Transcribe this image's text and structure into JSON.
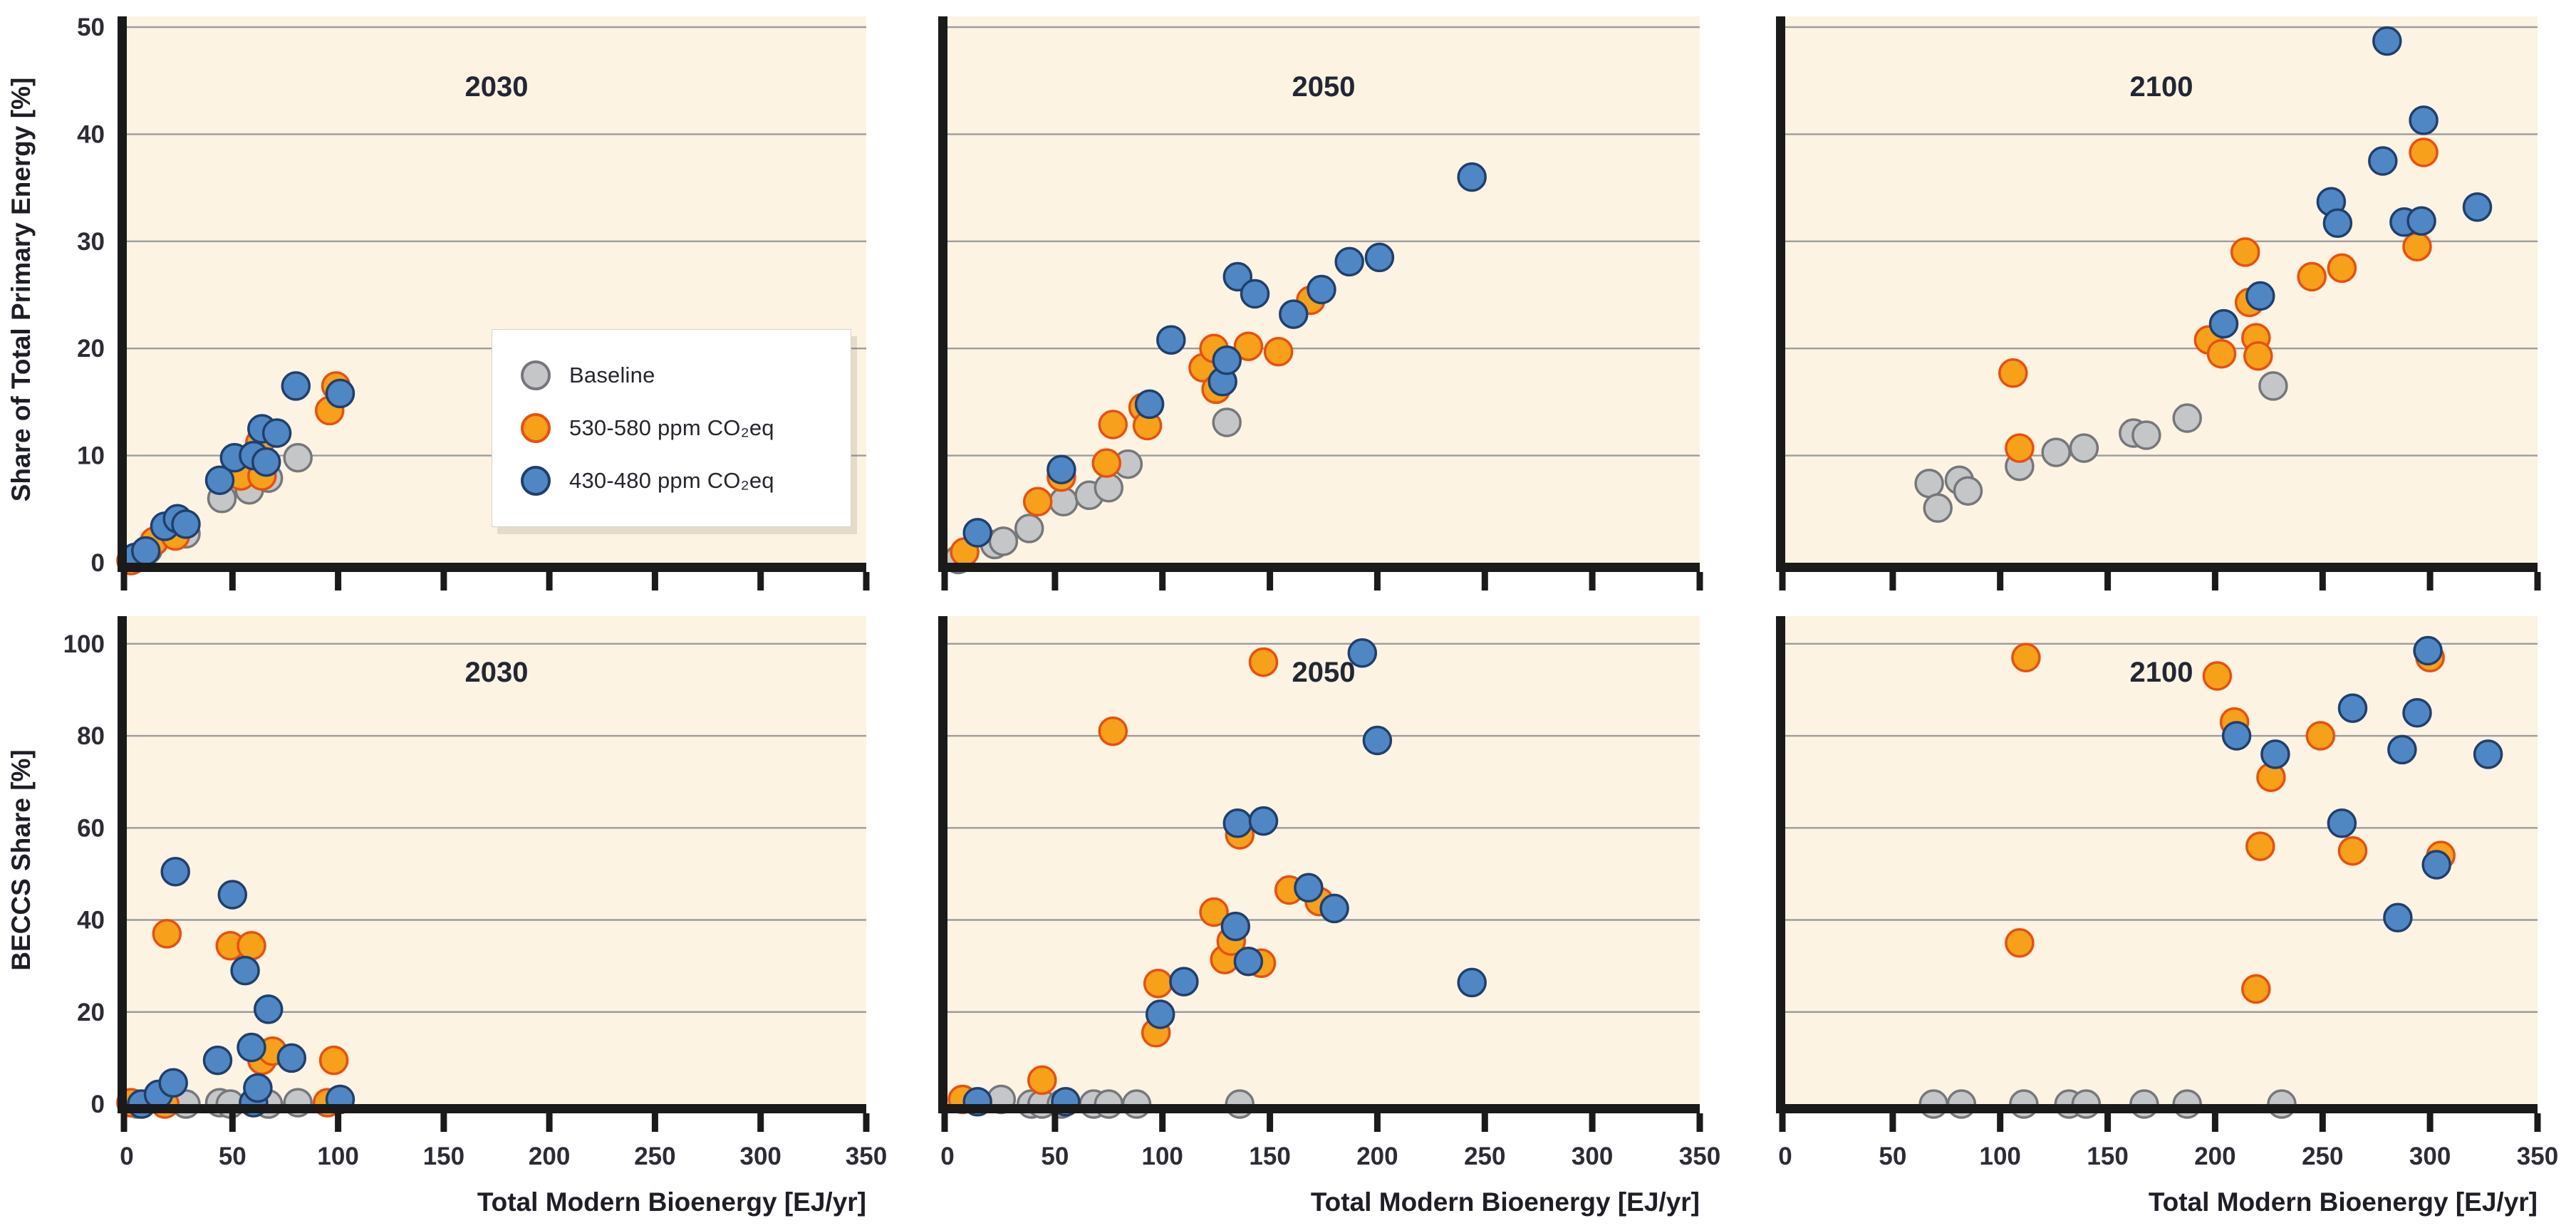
{
  "colors": {
    "page_background": "#ffffff",
    "panel_background": "#fdf3e2",
    "gridline": "#9c9c9c",
    "axis_spine": "#1a1a1a",
    "tick_label": "#2b2c35",
    "series": {
      "baseline": {
        "fill": "#c5c6c8",
        "stroke": "#76777a"
      },
      "mid": {
        "fill": "#f7a11a",
        "stroke": "#e8500f"
      },
      "low": {
        "fill": "#4e87c3",
        "stroke": "#20406b"
      }
    }
  },
  "legend": {
    "items": [
      {
        "label": "Baseline",
        "series": "baseline"
      },
      {
        "label": "530-580 ppm CO₂eq",
        "series": "mid"
      },
      {
        "label": "430-480 ppm CO₂eq",
        "series": "low"
      }
    ]
  },
  "axes": {
    "x_title": "Total Modern Bioenergy [EJ/yr]",
    "y_title_top": "Share of Total Primary Energy [%]",
    "y_title_bottom": "BECCS Share [%]"
  },
  "chart_data": [
    {
      "type": "scatter",
      "row": 0,
      "col": 0,
      "title": "2030",
      "xlabel": "Total Modern Bioenergy [EJ/yr]",
      "ylabel": "Share of Total Primary Energy [%]",
      "xlim": [
        0,
        350
      ],
      "ylim": [
        0,
        51
      ],
      "xticks": [
        0,
        50,
        100,
        150,
        200,
        250,
        300,
        350
      ],
      "yticks": [
        0,
        10,
        20,
        30,
        40,
        50
      ],
      "show_x_tick_labels": false,
      "show_y_tick_labels": true,
      "series": [
        {
          "name": "Baseline",
          "color": "baseline",
          "points": [
            [
              3,
              0.3
            ],
            [
              10,
              1.2
            ],
            [
              28,
              2.7
            ],
            [
              45,
              6.0
            ],
            [
              58,
              6.8
            ],
            [
              67,
              7.9
            ],
            [
              81,
              9.8
            ]
          ]
        },
        {
          "name": "530-580 ppm CO₂eq",
          "color": "mid",
          "points": [
            [
              2,
              0.2
            ],
            [
              13,
              2.0
            ],
            [
              23,
              2.5
            ],
            [
              54,
              8.1
            ],
            [
              63,
              11.2
            ],
            [
              64,
              8.1
            ],
            [
              96,
              14.2
            ],
            [
              99,
              16.5
            ]
          ]
        },
        {
          "name": "430-480 ppm CO₂eq",
          "color": "low",
          "points": [
            [
              4,
              0.5
            ],
            [
              9,
              1.1
            ],
            [
              18,
              3.4
            ],
            [
              24,
              4.1
            ],
            [
              28,
              3.6
            ],
            [
              44,
              7.7
            ],
            [
              51,
              9.8
            ],
            [
              60,
              10.0
            ],
            [
              64,
              12.5
            ],
            [
              66,
              9.4
            ],
            [
              71,
              12.1
            ],
            [
              80,
              16.5
            ],
            [
              101,
              15.8
            ]
          ]
        }
      ]
    },
    {
      "type": "scatter",
      "row": 0,
      "col": 1,
      "title": "2050",
      "xlabel": "Total Modern Bioenergy [EJ/yr]",
      "ylabel": "Share of Total Primary Energy [%]",
      "xlim": [
        0,
        350
      ],
      "ylim": [
        0,
        51
      ],
      "xticks": [
        0,
        50,
        100,
        150,
        200,
        250,
        300,
        350
      ],
      "yticks": [
        0,
        10,
        20,
        30,
        40,
        50
      ],
      "show_x_tick_labels": false,
      "show_y_tick_labels": false,
      "series": [
        {
          "name": "Baseline",
          "color": "baseline",
          "points": [
            [
              5,
              0.3
            ],
            [
              22,
              1.7
            ],
            [
              26,
              2.0
            ],
            [
              38,
              3.2
            ],
            [
              54,
              5.7
            ],
            [
              66,
              6.3
            ],
            [
              75,
              7.0
            ],
            [
              84,
              9.2
            ],
            [
              130,
              13.1
            ]
          ]
        },
        {
          "name": "530-580 ppm CO₂eq",
          "color": "mid",
          "points": [
            [
              8,
              1.0
            ],
            [
              42,
              5.7
            ],
            [
              53,
              8.0
            ],
            [
              74,
              9.3
            ],
            [
              77,
              12.9
            ],
            [
              91,
              14.5
            ],
            [
              93,
              12.8
            ],
            [
              119,
              18.2
            ],
            [
              124,
              20.0
            ],
            [
              125,
              16.2
            ],
            [
              140,
              20.2
            ],
            [
              154,
              19.7
            ],
            [
              169,
              24.5
            ]
          ]
        },
        {
          "name": "430-480 ppm CO₂eq",
          "color": "low",
          "points": [
            [
              14,
              2.8
            ],
            [
              53,
              8.7
            ],
            [
              94,
              14.8
            ],
            [
              104,
              20.8
            ],
            [
              128,
              16.9
            ],
            [
              130,
              18.9
            ],
            [
              135,
              26.7
            ],
            [
              143,
              25.1
            ],
            [
              161,
              23.2
            ],
            [
              174,
              25.5
            ],
            [
              187,
              28.1
            ],
            [
              201,
              28.5
            ],
            [
              244,
              36.0
            ]
          ]
        }
      ]
    },
    {
      "type": "scatter",
      "row": 0,
      "col": 2,
      "title": "2100",
      "xlabel": "Total Modern Bioenergy [EJ/yr]",
      "ylabel": "Share of Total Primary Energy [%]",
      "xlim": [
        0,
        350
      ],
      "ylim": [
        0,
        51
      ],
      "xticks": [
        0,
        50,
        100,
        150,
        200,
        250,
        300,
        350
      ],
      "yticks": [
        0,
        10,
        20,
        30,
        40,
        50
      ],
      "show_x_tick_labels": false,
      "show_y_tick_labels": false,
      "series": [
        {
          "name": "Baseline",
          "color": "baseline",
          "points": [
            [
              67,
              7.4
            ],
            [
              71,
              5.1
            ],
            [
              81,
              7.7
            ],
            [
              85,
              6.7
            ],
            [
              109,
              9.0
            ],
            [
              126,
              10.3
            ],
            [
              139,
              10.7
            ],
            [
              162,
              12.1
            ],
            [
              168,
              11.9
            ],
            [
              187,
              13.5
            ],
            [
              227,
              16.5
            ]
          ]
        },
        {
          "name": "530-580 ppm CO₂eq",
          "color": "mid",
          "points": [
            [
              106,
              17.7
            ],
            [
              109,
              10.7
            ],
            [
              197,
              20.8
            ],
            [
              203,
              19.5
            ],
            [
              214,
              29.0
            ],
            [
              216,
              24.3
            ],
            [
              219,
              21.0
            ],
            [
              220,
              19.3
            ],
            [
              245,
              26.7
            ],
            [
              259,
              27.5
            ],
            [
              294,
              29.5
            ],
            [
              297,
              38.3
            ]
          ]
        },
        {
          "name": "430-480 ppm CO₂eq",
          "color": "low",
          "points": [
            [
              204,
              22.3
            ],
            [
              221,
              24.9
            ],
            [
              254,
              33.7
            ],
            [
              257,
              31.7
            ],
            [
              278,
              37.5
            ],
            [
              280,
              48.7
            ],
            [
              288,
              31.8
            ],
            [
              296,
              31.9
            ],
            [
              297,
              41.3
            ],
            [
              322,
              33.2
            ]
          ]
        }
      ]
    },
    {
      "type": "scatter",
      "row": 1,
      "col": 0,
      "title": "2030",
      "xlabel": "Total Modern Bioenergy [EJ/yr]",
      "ylabel": "BECCS Share [%]",
      "xlim": [
        0,
        350
      ],
      "ylim": [
        0,
        106
      ],
      "xticks": [
        0,
        50,
        100,
        150,
        200,
        250,
        300,
        350
      ],
      "yticks": [
        0,
        20,
        40,
        60,
        80,
        100
      ],
      "show_x_tick_labels": true,
      "show_y_tick_labels": true,
      "series": [
        {
          "name": "Baseline",
          "color": "baseline",
          "points": [
            [
              5,
              0
            ],
            [
              28,
              0
            ],
            [
              44,
              0.3
            ],
            [
              49,
              0
            ],
            [
              67,
              0
            ],
            [
              81,
              0.3
            ]
          ]
        },
        {
          "name": "530-580 ppm CO₂eq",
          "color": "mid",
          "points": [
            [
              2,
              0.3
            ],
            [
              18,
              0
            ],
            [
              19,
              37
            ],
            [
              49,
              34.4
            ],
            [
              59,
              34.4
            ],
            [
              64,
              9.5
            ],
            [
              69,
              11.5
            ],
            [
              95,
              0.3
            ],
            [
              98,
              9.5
            ]
          ]
        },
        {
          "name": "430-480 ppm CO₂eq",
          "color": "low",
          "points": [
            [
              7,
              0
            ],
            [
              15,
              2.1
            ],
            [
              22,
              4.6
            ],
            [
              23,
              50.5
            ],
            [
              43,
              9.5
            ],
            [
              50,
              45.5
            ],
            [
              56,
              29
            ],
            [
              59,
              12.3
            ],
            [
              60,
              0.3
            ],
            [
              62,
              3.5
            ],
            [
              67,
              20.6
            ],
            [
              78,
              10
            ],
            [
              101,
              1
            ]
          ]
        }
      ]
    },
    {
      "type": "scatter",
      "row": 1,
      "col": 1,
      "title": "2050",
      "xlabel": "Total Modern Bioenergy [EJ/yr]",
      "ylabel": "BECCS Share [%]",
      "xlim": [
        0,
        350
      ],
      "ylim": [
        0,
        106
      ],
      "xticks": [
        0,
        50,
        100,
        150,
        200,
        250,
        300,
        350
      ],
      "yticks": [
        0,
        20,
        40,
        60,
        80,
        100
      ],
      "show_x_tick_labels": true,
      "show_y_tick_labels": false,
      "series": [
        {
          "name": "Baseline",
          "color": "baseline",
          "points": [
            [
              25,
              1
            ],
            [
              39,
              0
            ],
            [
              44,
              0
            ],
            [
              53,
              0
            ],
            [
              68,
              0
            ],
            [
              75,
              0
            ],
            [
              88,
              0
            ],
            [
              136,
              0
            ]
          ]
        },
        {
          "name": "530-580 ppm CO₂eq",
          "color": "mid",
          "points": [
            [
              7,
              1
            ],
            [
              44,
              5.2
            ],
            [
              77,
              81
            ],
            [
              97,
              15.5
            ],
            [
              98,
              26.2
            ],
            [
              124,
              41.7
            ],
            [
              129,
              31.4
            ],
            [
              132,
              35.4
            ],
            [
              136,
              58.5
            ],
            [
              146,
              30.6
            ],
            [
              147,
              96
            ],
            [
              159,
              46.5
            ],
            [
              173,
              44
            ]
          ]
        },
        {
          "name": "430-480 ppm CO₂eq",
          "color": "low",
          "points": [
            [
              14,
              0.5
            ],
            [
              55,
              0.5
            ],
            [
              99,
              19.5
            ],
            [
              110,
              26.6
            ],
            [
              134,
              38.6
            ],
            [
              135,
              61
            ],
            [
              140,
              31
            ],
            [
              147,
              61.5
            ],
            [
              168,
              47
            ],
            [
              180,
              42.5
            ],
            [
              193,
              98
            ],
            [
              200,
              79
            ],
            [
              244,
              26.4
            ]
          ]
        }
      ]
    },
    {
      "type": "scatter",
      "row": 1,
      "col": 2,
      "title": "2100",
      "xlabel": "Total Modern Bioenergy [EJ/yr]",
      "ylabel": "BECCS Share [%]",
      "xlim": [
        0,
        350
      ],
      "ylim": [
        0,
        106
      ],
      "xticks": [
        0,
        50,
        100,
        150,
        200,
        250,
        300,
        350
      ],
      "yticks": [
        0,
        20,
        40,
        60,
        80,
        100
      ],
      "show_x_tick_labels": true,
      "show_y_tick_labels": false,
      "series": [
        {
          "name": "Baseline",
          "color": "baseline",
          "points": [
            [
              69,
              0
            ],
            [
              82,
              0
            ],
            [
              111,
              0
            ],
            [
              132,
              0
            ],
            [
              140,
              0
            ],
            [
              167,
              0
            ],
            [
              187,
              0
            ],
            [
              231,
              0
            ]
          ]
        },
        {
          "name": "530-580 ppm CO₂eq",
          "color": "mid",
          "points": [
            [
              109,
              35
            ],
            [
              112,
              97
            ],
            [
              201,
              93
            ],
            [
              209,
              83
            ],
            [
              219,
              25
            ],
            [
              221,
              56
            ],
            [
              226,
              71
            ],
            [
              249,
              80
            ],
            [
              264,
              55
            ],
            [
              300,
              97
            ],
            [
              305,
              54
            ]
          ]
        },
        {
          "name": "430-480 ppm CO₂eq",
          "color": "low",
          "points": [
            [
              210,
              80
            ],
            [
              228,
              76
            ],
            [
              259,
              61
            ],
            [
              264,
              86
            ],
            [
              285,
              40.5
            ],
            [
              287,
              77
            ],
            [
              294,
              85
            ],
            [
              299,
              98.5
            ],
            [
              303,
              52
            ],
            [
              327,
              76
            ]
          ]
        }
      ]
    }
  ]
}
